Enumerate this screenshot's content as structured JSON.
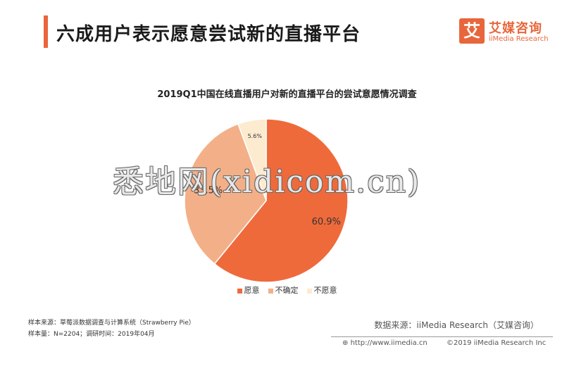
{
  "header": {
    "title": "六成用户表示愿意尝试新的直播平台",
    "logo_mark": "艾",
    "logo_cn": "艾媒咨询",
    "logo_en": "iiMedia Research"
  },
  "chart_data": {
    "type": "pie",
    "title": "2019Q1中国在线直播用户对新的直播平台的尝试意愿情况调查",
    "categories": [
      "愿意",
      "不确定",
      "不愿意"
    ],
    "values": [
      60.9,
      33.5,
      5.6
    ],
    "labels": [
      "60.9%",
      "33.5%",
      "5.6%"
    ],
    "colors": [
      "#ef6a3b",
      "#f3b088",
      "#fdebd0"
    ],
    "legend_position": "bottom"
  },
  "watermark": "悉地网(xidicom.cn)",
  "notes": {
    "sample_source": "样本来源：草莓派数据调查与计算系统（Strawberry Pie）",
    "sample_size": "样本量：N=2204；调研时间：2019年04月"
  },
  "source": "数据来源：iiMedia Research（艾媒咨询）",
  "footer": {
    "url": "http://www.iimedia.cn",
    "copyright": "©2019 iiMedia Research Inc"
  }
}
